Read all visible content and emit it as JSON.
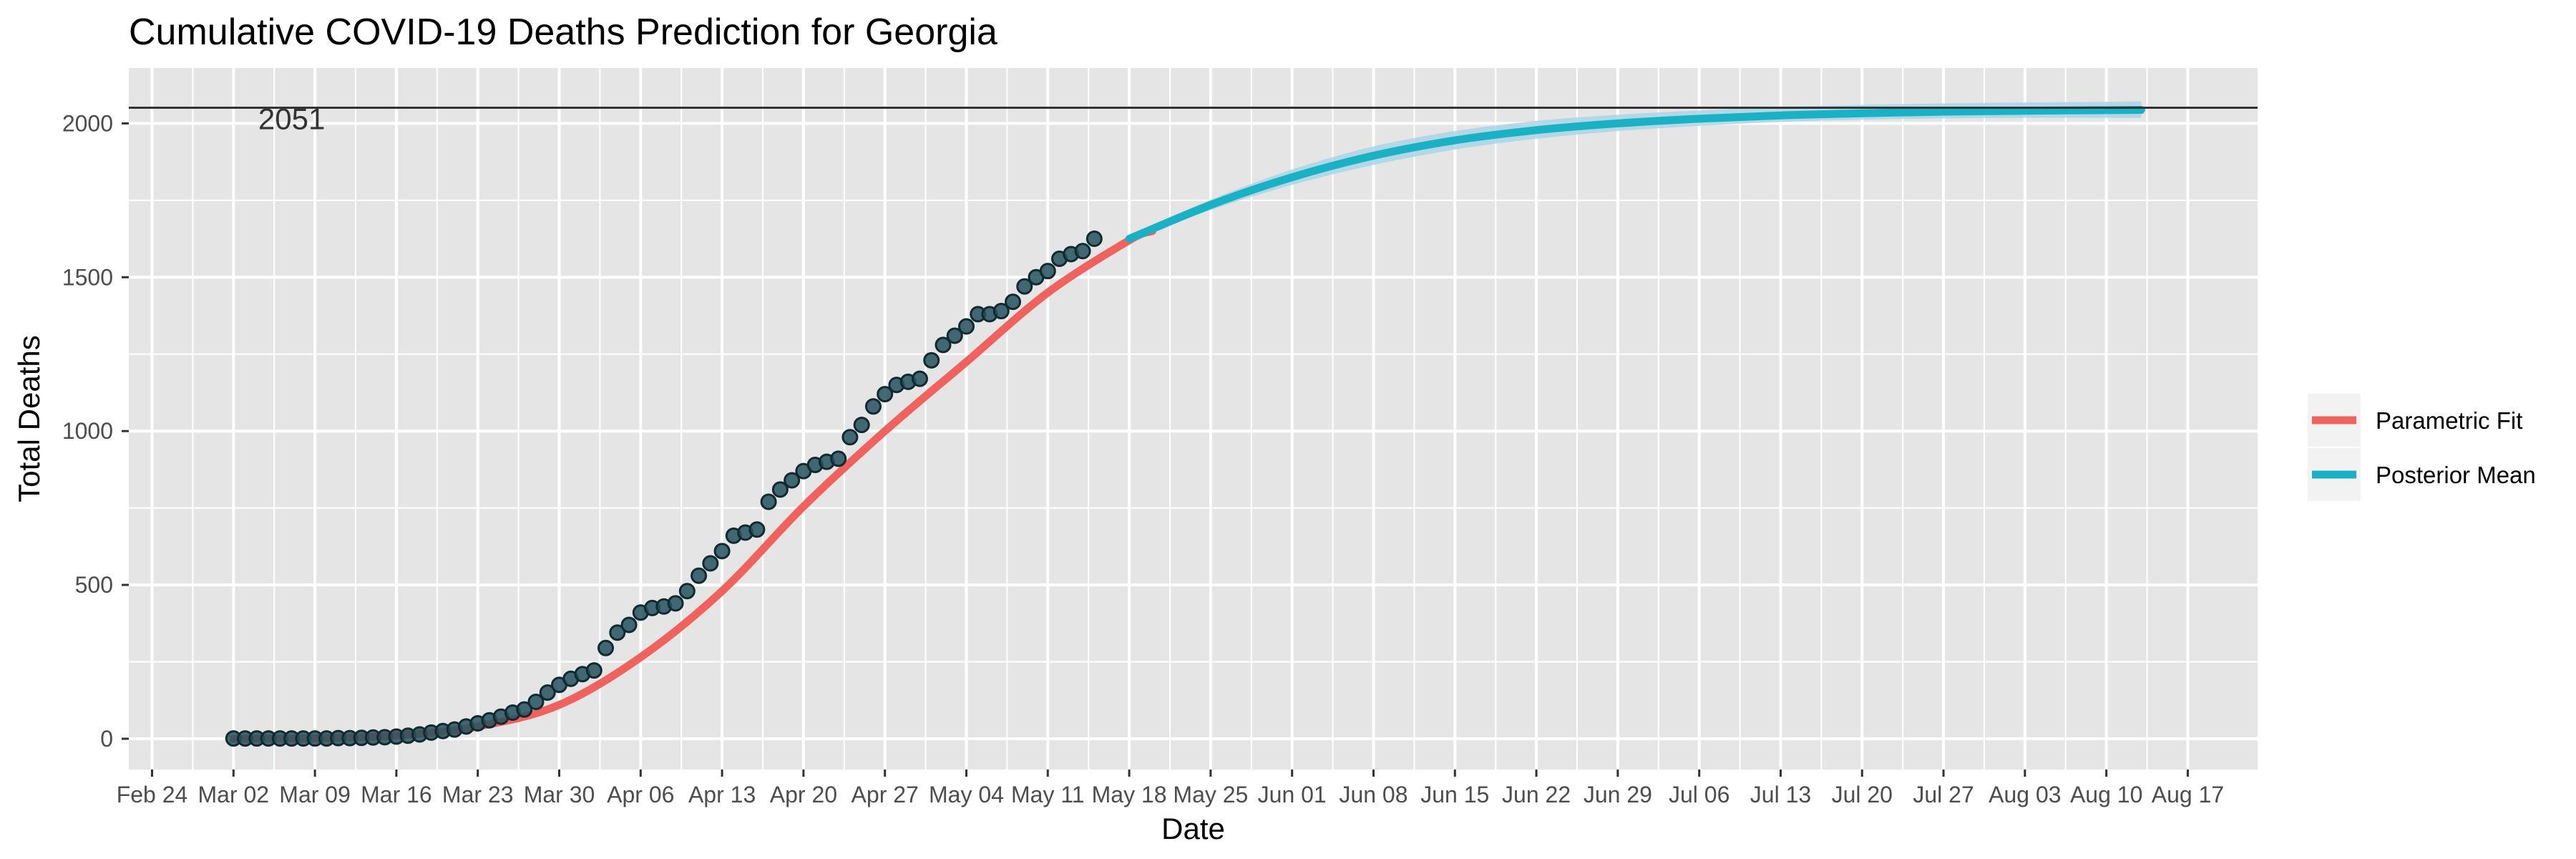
{
  "chart_data": {
    "type": "line",
    "title": "Cumulative COVID-19 Deaths Prediction for Georgia",
    "xlabel": "Date",
    "ylabel": "Total Deaths",
    "x_range": [
      "2020-02-22",
      "2020-08-23"
    ],
    "ylim": [
      -100,
      2180
    ],
    "x_ticks": [
      {
        "date": "2020-02-24",
        "label": "Feb 24"
      },
      {
        "date": "2020-03-02",
        "label": "Mar 02"
      },
      {
        "date": "2020-03-09",
        "label": "Mar 09"
      },
      {
        "date": "2020-03-16",
        "label": "Mar 16"
      },
      {
        "date": "2020-03-23",
        "label": "Mar 23"
      },
      {
        "date": "2020-03-30",
        "label": "Mar 30"
      },
      {
        "date": "2020-04-06",
        "label": "Apr 06"
      },
      {
        "date": "2020-04-13",
        "label": "Apr 13"
      },
      {
        "date": "2020-04-20",
        "label": "Apr 20"
      },
      {
        "date": "2020-04-27",
        "label": "Apr 27"
      },
      {
        "date": "2020-05-04",
        "label": "May 04"
      },
      {
        "date": "2020-05-11",
        "label": "May 11"
      },
      {
        "date": "2020-05-18",
        "label": "May 18"
      },
      {
        "date": "2020-05-25",
        "label": "May 25"
      },
      {
        "date": "2020-06-01",
        "label": "Jun 01"
      },
      {
        "date": "2020-06-08",
        "label": "Jun 08"
      },
      {
        "date": "2020-06-15",
        "label": "Jun 15"
      },
      {
        "date": "2020-06-22",
        "label": "Jun 22"
      },
      {
        "date": "2020-06-29",
        "label": "Jun 29"
      },
      {
        "date": "2020-07-06",
        "label": "Jul 06"
      },
      {
        "date": "2020-07-13",
        "label": "Jul 13"
      },
      {
        "date": "2020-07-20",
        "label": "Jul 20"
      },
      {
        "date": "2020-07-27",
        "label": "Jul 27"
      },
      {
        "date": "2020-08-03",
        "label": "Aug 03"
      },
      {
        "date": "2020-08-10",
        "label": "Aug 10"
      },
      {
        "date": "2020-08-17",
        "label": "Aug 17"
      }
    ],
    "y_ticks": [
      0,
      500,
      1000,
      1500,
      2000
    ],
    "grid": true,
    "legend_position": "right",
    "hline": {
      "value": 2051,
      "label": "2051",
      "label_date": "2020-03-07"
    },
    "colors": {
      "panel": "#e5e5e5",
      "grid": "#ffffff",
      "parametric": "#f0625e",
      "posterior": "#1bb1c4",
      "band": "#a9d6e8",
      "points_fill": "#24525e",
      "points_edge": "#102a30",
      "hline": "#333333"
    },
    "series": [
      {
        "name": "Parametric Fit",
        "x": [
          "2020-03-02",
          "2020-03-09",
          "2020-03-16",
          "2020-03-23",
          "2020-03-30",
          "2020-04-06",
          "2020-04-13",
          "2020-04-20",
          "2020-04-27",
          "2020-05-04",
          "2020-05-11",
          "2020-05-18",
          "2020-05-20"
        ],
        "values": [
          0,
          2,
          10,
          40,
          110,
          265,
          480,
          755,
          1000,
          1225,
          1450,
          1620,
          1650
        ]
      },
      {
        "name": "Posterior Mean",
        "x": [
          "2020-05-18",
          "2020-05-25",
          "2020-06-01",
          "2020-06-08",
          "2020-06-15",
          "2020-06-22",
          "2020-06-29",
          "2020-07-06",
          "2020-07-13",
          "2020-07-20",
          "2020-07-27",
          "2020-08-03",
          "2020-08-10",
          "2020-08-13"
        ],
        "values": [
          1625,
          1735,
          1825,
          1895,
          1945,
          1978,
          2000,
          2015,
          2026,
          2033,
          2038,
          2041,
          2043,
          2044
        ]
      }
    ],
    "band": {
      "x": [
        "2020-05-18",
        "2020-05-25",
        "2020-06-01",
        "2020-06-08",
        "2020-06-15",
        "2020-06-22",
        "2020-06-29",
        "2020-07-06",
        "2020-07-13",
        "2020-07-20",
        "2020-07-27",
        "2020-08-03",
        "2020-08-10",
        "2020-08-13"
      ],
      "lower": [
        1615,
        1718,
        1800,
        1865,
        1915,
        1950,
        1975,
        1992,
        2005,
        2012,
        2016,
        2018,
        2018,
        2018
      ],
      "upper": [
        1635,
        1752,
        1850,
        1925,
        1975,
        2008,
        2028,
        2042,
        2053,
        2060,
        2065,
        2068,
        2070,
        2072
      ]
    },
    "observed": {
      "start_date": "2020-03-02",
      "values": [
        1,
        1,
        1,
        1,
        1,
        1,
        1,
        1,
        1,
        2,
        2,
        3,
        4,
        5,
        7,
        10,
        14,
        20,
        25,
        30,
        40,
        50,
        60,
        72,
        85,
        95,
        120,
        150,
        175,
        195,
        210,
        222,
        295,
        345,
        370,
        410,
        425,
        430,
        440,
        480,
        530,
        570,
        610,
        660,
        670,
        680,
        770,
        810,
        840,
        870,
        890,
        900,
        910,
        980,
        1020,
        1080,
        1120,
        1150,
        1160,
        1170,
        1230,
        1280,
        1310,
        1340,
        1380,
        1380,
        1390,
        1420,
        1470,
        1500,
        1520,
        1560,
        1575,
        1585,
        1625
      ]
    }
  }
}
